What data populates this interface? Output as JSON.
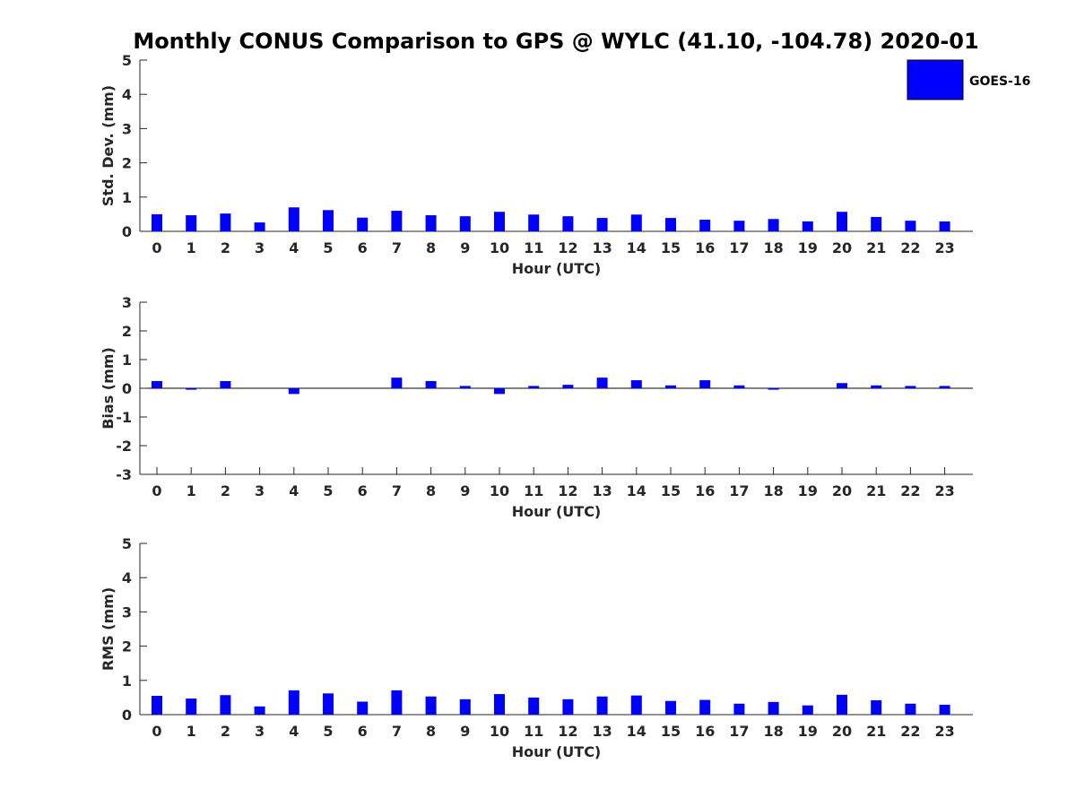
{
  "title": "Monthly CONUS Comparison to GPS @ WYLC (41.10, -104.78) 2020-01",
  "colors": {
    "bar": "#0000ff",
    "axis": "#262626"
  },
  "legend": {
    "label": "GOES-16",
    "placement": "top-right"
  },
  "chart_data": [
    {
      "type": "bar",
      "xlabel": "Hour (UTC)",
      "ylabel": "Std. Dev. (mm)",
      "ylim": [
        0,
        5
      ],
      "yticks": [
        0,
        1,
        2,
        3,
        4,
        5
      ],
      "categories": [
        "0",
        "1",
        "2",
        "3",
        "4",
        "5",
        "6",
        "7",
        "8",
        "9",
        "10",
        "11",
        "12",
        "13",
        "14",
        "15",
        "16",
        "17",
        "18",
        "19",
        "20",
        "21",
        "22",
        "23"
      ],
      "series": [
        {
          "name": "GOES-16",
          "values": [
            0.5,
            0.47,
            0.52,
            0.26,
            0.7,
            0.62,
            0.4,
            0.6,
            0.47,
            0.44,
            0.57,
            0.49,
            0.44,
            0.39,
            0.49,
            0.39,
            0.34,
            0.31,
            0.36,
            0.29,
            0.57,
            0.42,
            0.31,
            0.29
          ]
        }
      ]
    },
    {
      "type": "bar",
      "xlabel": "Hour (UTC)",
      "ylabel": "Bias (mm)",
      "ylim": [
        -3,
        3
      ],
      "yticks": [
        -3,
        -2,
        -1,
        0,
        1,
        2,
        3
      ],
      "categories": [
        "0",
        "1",
        "2",
        "3",
        "4",
        "5",
        "6",
        "7",
        "8",
        "9",
        "10",
        "11",
        "12",
        "13",
        "14",
        "15",
        "16",
        "17",
        "18",
        "19",
        "20",
        "21",
        "22",
        "23"
      ],
      "series": [
        {
          "name": "GOES-16",
          "values": [
            0.25,
            -0.05,
            0.25,
            0.0,
            -0.2,
            0.0,
            0.0,
            0.37,
            0.25,
            0.08,
            -0.2,
            0.08,
            0.12,
            0.37,
            0.28,
            0.1,
            0.28,
            0.1,
            -0.05,
            0.0,
            0.18,
            0.1,
            0.08,
            0.08
          ]
        }
      ]
    },
    {
      "type": "bar",
      "xlabel": "Hour (UTC)",
      "ylabel": "RMS (mm)",
      "ylim": [
        0,
        5
      ],
      "yticks": [
        0,
        1,
        2,
        3,
        4,
        5
      ],
      "categories": [
        "0",
        "1",
        "2",
        "3",
        "4",
        "5",
        "6",
        "7",
        "8",
        "9",
        "10",
        "11",
        "12",
        "13",
        "14",
        "15",
        "16",
        "17",
        "18",
        "19",
        "20",
        "21",
        "22",
        "23"
      ],
      "series": [
        {
          "name": "GOES-16",
          "values": [
            0.55,
            0.47,
            0.57,
            0.24,
            0.71,
            0.62,
            0.38,
            0.71,
            0.53,
            0.45,
            0.6,
            0.5,
            0.45,
            0.53,
            0.56,
            0.4,
            0.43,
            0.32,
            0.37,
            0.27,
            0.58,
            0.42,
            0.32,
            0.29
          ]
        }
      ]
    }
  ]
}
